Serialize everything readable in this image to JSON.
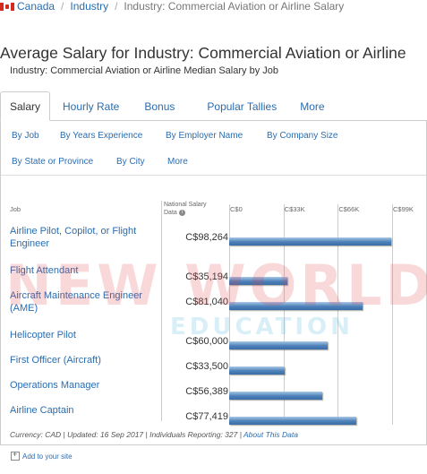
{
  "breadcrumb": {
    "country": "Canada",
    "section": "Industry",
    "current": "Industry: Commercial Aviation or Airline Salary"
  },
  "page_title": "Average Salary for Industry: Commercial Aviation or Airline",
  "tabs": [
    "Salary",
    "Hourly Rate",
    "Bonus",
    "Popular Tallies",
    "More"
  ],
  "subnav": {
    "row1": [
      "By Job",
      "By Years Experience",
      "By Employer Name",
      "By Company Size"
    ],
    "row2": [
      "By State or Province",
      "By City",
      "More"
    ]
  },
  "chart_title": "Industry: Commercial Aviation or Airline Median Salary by Job",
  "headers": {
    "job": "Job",
    "national_line1": "National Salary",
    "national_line2": "Data",
    "ticks": [
      "C$0",
      "C$33K",
      "C$66K",
      "C$99K"
    ]
  },
  "chart_data": {
    "type": "bar",
    "categories": [
      "Airline Pilot, Copilot, or Flight Engineer",
      "Flight Attendant",
      "Aircraft Maintenance Engineer (AME)",
      "Helicopter Pilot",
      "First Officer (Aircraft)",
      "Operations Manager",
      "Airline Captain"
    ],
    "values": [
      98264,
      35194,
      81040,
      60000,
      33500,
      56389,
      77419
    ],
    "value_labels": [
      "C$98,264",
      "C$35,194",
      "C$81,040",
      "C$60,000",
      "C$33,500",
      "C$56,389",
      "C$77,419"
    ],
    "title": "Industry: Commercial Aviation or Airline Median Salary by Job",
    "xlim": [
      0,
      99000
    ],
    "xticks": [
      "C$0",
      "C$33K",
      "C$66K",
      "C$99K"
    ],
    "grid": true
  },
  "footer": {
    "text": "Currency: CAD | Updated: 16 Sep 2017 | Individuals Reporting: 327 | ",
    "link": "About This Data"
  },
  "add_site": "Add to your site",
  "watermark": {
    "line1": "NEW WORLD",
    "line2": "EDUCATION"
  },
  "colors": {
    "link": "#2a6db0",
    "bar": "#4d80b8",
    "watermark_red": "#e13c46",
    "watermark_blue": "#50b4dc"
  }
}
